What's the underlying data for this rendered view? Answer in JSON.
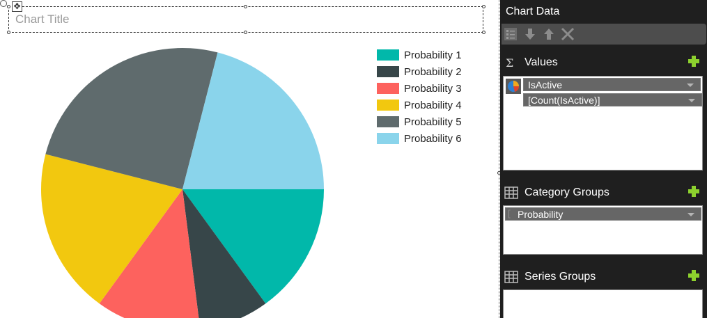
{
  "chart": {
    "title_placeholder": "Chart Title"
  },
  "chart_data": {
    "type": "pie",
    "categories": [
      "Probability 1",
      "Probability 2",
      "Probability 3",
      "Probability 4",
      "Probability 5",
      "Probability 6"
    ],
    "values": [
      15,
      8,
      12,
      19,
      25,
      21
    ],
    "colors": [
      "#01b8aa",
      "#374649",
      "#fd625e",
      "#f2c80f",
      "#5f6b6d",
      "#8ad4eb"
    ],
    "legend_position": "top-right"
  },
  "panel": {
    "title": "Chart Data",
    "toolbar": {
      "icons": [
        "properties-icon",
        "move-down-icon",
        "move-up-icon",
        "delete-icon"
      ]
    },
    "values": {
      "label": "Values",
      "field": "IsActive",
      "expression": "[Count(IsActive)]"
    },
    "category_groups": {
      "label": "Category Groups",
      "field": "Probability"
    },
    "series_groups": {
      "label": "Series Groups"
    }
  }
}
